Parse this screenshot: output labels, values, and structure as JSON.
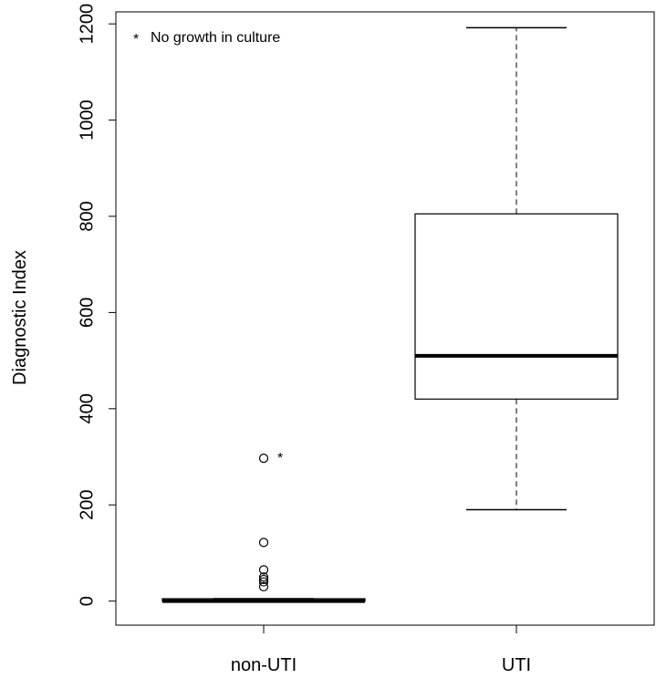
{
  "chart_data": {
    "type": "boxplot",
    "ylabel": "Diagnostic Index",
    "ylim": [
      -50,
      1225
    ],
    "y_ticks": [
      0,
      200,
      400,
      600,
      800,
      1000,
      1200
    ],
    "categories": [
      "non-UTI",
      "UTI"
    ],
    "boxes": [
      {
        "category": "non-UTI",
        "whisker_low": 0,
        "q1": 0,
        "median": 0,
        "q3": 5,
        "whisker_high": 5,
        "outliers": [
          30,
          40,
          45,
          50,
          65,
          122,
          297
        ],
        "annotated_outlier": 297
      },
      {
        "category": "UTI",
        "whisker_low": 190,
        "q1": 420,
        "median": 510,
        "q3": 805,
        "whisker_high": 1192,
        "outliers": []
      }
    ],
    "legend": {
      "symbol": "*",
      "text": "No growth in culture",
      "placement": "top-left"
    },
    "colors": {
      "axis": "#000000",
      "box": "#000000",
      "marker": "#ff0000"
    }
  }
}
